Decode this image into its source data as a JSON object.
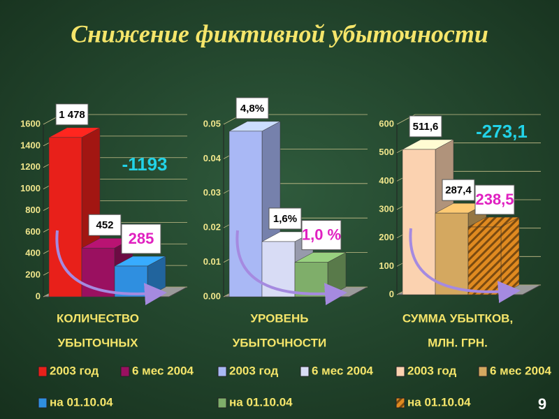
{
  "title": "Снижение фиктивной убыточности",
  "page_number": "9",
  "chart_data": [
    {
      "type": "bar",
      "title_lines": [
        "КОЛИЧЕСТВО",
        "УБЫТОЧНЫХ"
      ],
      "ylim": [
        0,
        1600
      ],
      "yticks": [
        0,
        200,
        400,
        600,
        800,
        1000,
        1200,
        1400,
        1600
      ],
      "grid": true,
      "annotations": [
        "-1193"
      ],
      "series": [
        {
          "name": "2003 год",
          "color": "#e8201a",
          "values": [
            1478
          ],
          "value_labels": [
            "1 478"
          ],
          "value_label_color": "#000000"
        },
        {
          "name": "6 мес 2004",
          "color": "#9a1060",
          "values": [
            452
          ],
          "value_labels": [
            "452"
          ],
          "value_label_color": "#000000"
        },
        {
          "name": "на 01.10.04",
          "color": "#2f8fe0",
          "values": [
            285
          ],
          "value_labels": [
            "285"
          ],
          "value_label_color": "#e020c0"
        }
      ]
    },
    {
      "type": "bar",
      "title_lines": [
        "УРОВЕНЬ",
        "УБЫТОЧНОСТИ"
      ],
      "ylim": [
        0,
        0.05
      ],
      "yticks": [
        {
          "value": 0,
          "label": "0.00"
        },
        {
          "value": 0.01,
          "label": "0.01"
        },
        {
          "value": 0.02,
          "label": "0.02"
        },
        {
          "value": 0.03,
          "label": "0.03"
        },
        {
          "value": 0.04,
          "label": "0.04"
        },
        {
          "value": 0.05,
          "label": "0.05"
        }
      ],
      "grid": true,
      "series": [
        {
          "name": "2003 год",
          "color": "#a9b8f5",
          "values": [
            0.048
          ],
          "value_labels": [
            "4,8%"
          ],
          "value_label_color": "#000000"
        },
        {
          "name": "6 мес 2004",
          "color": "#d8dcf5",
          "values": [
            0.016
          ],
          "value_labels": [
            "1,6%"
          ],
          "value_label_color": "#000000"
        },
        {
          "name": "на 01.10.04",
          "color": "#7fae6a",
          "values": [
            0.01
          ],
          "value_labels": [
            "1,0 %"
          ],
          "value_label_color": "#e020c0"
        }
      ]
    },
    {
      "type": "bar",
      "title_lines": [
        "СУММА УБЫТКОВ,",
        "МЛН. ГРН."
      ],
      "ylim": [
        0,
        600
      ],
      "yticks": [
        0,
        100,
        200,
        300,
        400,
        500,
        600
      ],
      "grid": true,
      "annotations": [
        "-273,1"
      ],
      "series": [
        {
          "name": "2003 год",
          "color": "#fbd2b0",
          "values": [
            511.6
          ],
          "value_labels": [
            "511,6"
          ],
          "value_label_color": "#000000"
        },
        {
          "name": "6 мес 2004",
          "color": "#d4a860",
          "values": [
            287.4
          ],
          "value_labels": [
            "287,4"
          ],
          "value_label_color": "#000000"
        },
        {
          "name": "на 01.10.04",
          "color": "#e08a20",
          "values": [
            238.5
          ],
          "value_labels": [
            "238,5"
          ],
          "value_label_color": "#e020c0"
        }
      ]
    }
  ]
}
